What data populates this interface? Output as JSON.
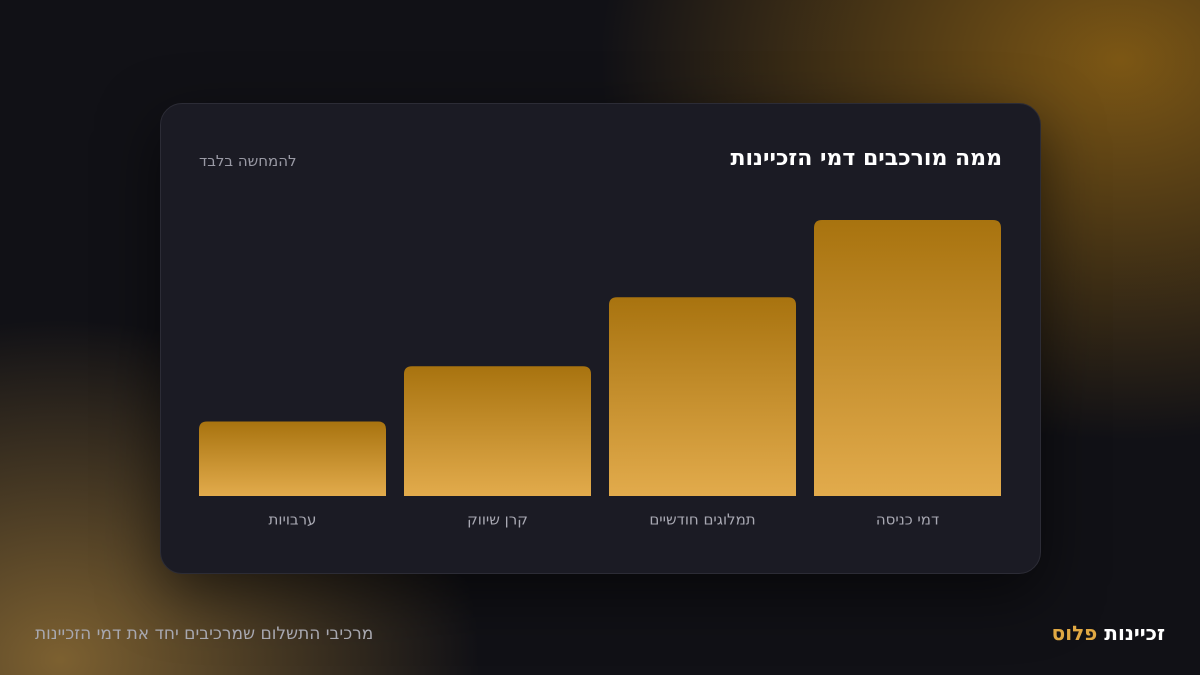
{
  "chart_data": {
    "type": "bar",
    "title": "ממה מורכבים דמי הזכיינות",
    "subtitle": "להמחשה בלבד",
    "categories": [
      "דמי כניסה",
      "תמלוגים חודשיים",
      "קרן שיווק",
      "ערבויות"
    ],
    "values": [
      100,
      72,
      47,
      27
    ],
    "ylim": [
      0,
      100
    ],
    "colors": [
      "#a8730f",
      "#e2ab4c"
    ]
  },
  "footer": {
    "caption": "מרכיבי התשלום שמרכיבים יחד את דמי הזכיינות",
    "brand": {
      "name": "זכיינות",
      "suffix": "פלוס"
    }
  }
}
